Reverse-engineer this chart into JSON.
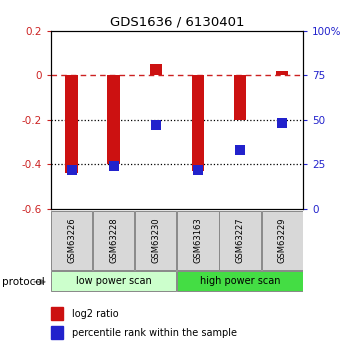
{
  "title": "GDS1636 / 6130401",
  "samples": [
    "GSM63226",
    "GSM63228",
    "GSM63230",
    "GSM63163",
    "GSM63227",
    "GSM63229"
  ],
  "log2_ratio": [
    -0.44,
    -0.4,
    0.05,
    -0.43,
    -0.2,
    0.02
  ],
  "percentile_rank": [
    22,
    24,
    47,
    22,
    33,
    48
  ],
  "ylim_left": [
    -0.6,
    0.2
  ],
  "ylim_right": [
    0,
    100
  ],
  "bar_color": "#cc1111",
  "dot_color": "#2222cc",
  "protocol_groups": [
    {
      "label": "low power scan",
      "n": 3,
      "color": "#ccffcc"
    },
    {
      "label": "high power scan",
      "n": 3,
      "color": "#44dd44"
    }
  ],
  "legend_items": [
    {
      "label": "log2 ratio",
      "color": "#cc1111"
    },
    {
      "label": "percentile rank within the sample",
      "color": "#2222cc"
    }
  ],
  "hlines": [
    0.0,
    -0.2,
    -0.4
  ],
  "hline_styles": [
    "dashed",
    "dotted",
    "dotted"
  ],
  "hline_colors": [
    "#cc2222",
    "#000000",
    "#000000"
  ],
  "right_yticks": [
    0,
    25,
    50,
    75,
    100
  ],
  "right_yticklabels": [
    "0",
    "25",
    "50",
    "75",
    "100%"
  ],
  "left_yticks": [
    -0.6,
    -0.4,
    -0.2,
    0.0,
    0.2
  ],
  "left_yticklabels": [
    "-0.6",
    "-0.4",
    "-0.2",
    "0",
    "0.2"
  ],
  "protocol_label": "protocol"
}
